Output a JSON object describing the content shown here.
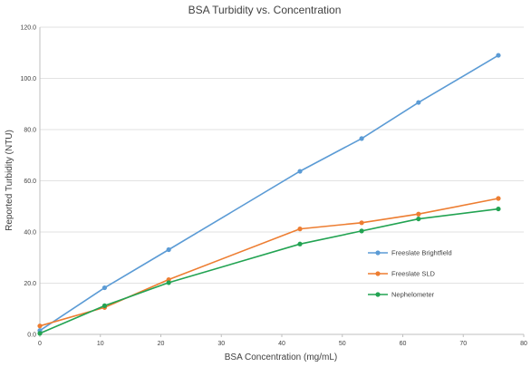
{
  "chart_data": {
    "type": "line",
    "title": "BSA Turbidity vs. Concentration",
    "xlabel": "BSA Concentration (mg/mL)",
    "ylabel": "Reported Turbidity (NTU)",
    "xlim": [
      0,
      80
    ],
    "ylim": [
      0,
      120
    ],
    "x_ticks": [
      "0",
      "10",
      "20",
      "30",
      "40",
      "50",
      "60",
      "70",
      "80"
    ],
    "y_ticks": [
      "0.0",
      "20.0",
      "40.0",
      "60.0",
      "80.0",
      "100.0",
      "120.0"
    ],
    "grid": "horizontal",
    "legend_position": "right",
    "series": [
      {
        "name": "Freeslate Brightfield",
        "color": "#5b9bd5",
        "x": [
          0,
          10.7,
          21.3,
          43,
          53.2,
          62.6,
          75.8
        ],
        "y": [
          1.5,
          18.2,
          33.1,
          63.7,
          76.5,
          90.6,
          109.0
        ]
      },
      {
        "name": "Freeslate SLD",
        "color": "#ed7d31",
        "x": [
          0,
          10.7,
          21.3,
          43,
          53.2,
          62.6,
          75.8
        ],
        "y": [
          3.3,
          10.5,
          21.4,
          41.2,
          43.6,
          47.0,
          53.1
        ]
      },
      {
        "name": "Nephelometer",
        "color": "#22a352",
        "x": [
          0,
          10.7,
          21.3,
          43,
          53.2,
          62.6,
          75.8
        ],
        "y": [
          0.4,
          11.2,
          20.2,
          35.3,
          40.4,
          45.1,
          49.0
        ]
      }
    ]
  }
}
